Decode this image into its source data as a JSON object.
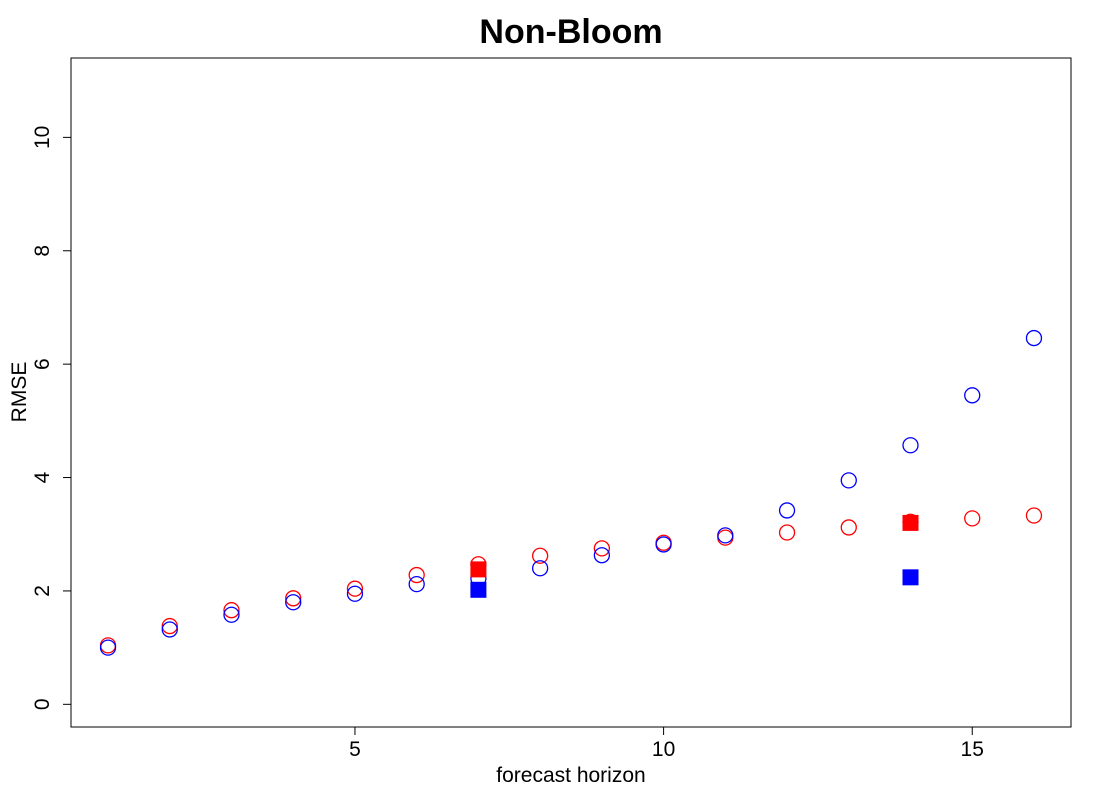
{
  "chart_data": {
    "type": "scatter",
    "title": "Non-Bloom",
    "xlabel": "forecast horizon",
    "ylabel": "RMSE",
    "xlim": [
      0.4,
      16.6
    ],
    "ylim": [
      -0.4,
      11.4
    ],
    "x_ticks": [
      5,
      10,
      15
    ],
    "y_ticks": [
      0,
      2,
      4,
      6,
      8,
      10
    ],
    "grid": false,
    "legend": "none",
    "series": [
      {
        "color": "#ff0000",
        "marker": "open-circle",
        "points": [
          {
            "x": 1,
            "y": 1.04
          },
          {
            "x": 2,
            "y": 1.38
          },
          {
            "x": 3,
            "y": 1.66
          },
          {
            "x": 4,
            "y": 1.87
          },
          {
            "x": 5,
            "y": 2.04
          },
          {
            "x": 6,
            "y": 2.28
          },
          {
            "x": 7,
            "y": 2.47
          },
          {
            "x": 8,
            "y": 2.62
          },
          {
            "x": 9,
            "y": 2.75
          },
          {
            "x": 10,
            "y": 2.85
          },
          {
            "x": 11,
            "y": 2.94
          },
          {
            "x": 12,
            "y": 3.03
          },
          {
            "x": 13,
            "y": 3.12
          },
          {
            "x": 14,
            "y": 3.22
          },
          {
            "x": 15,
            "y": 3.28
          },
          {
            "x": 16,
            "y": 3.33
          }
        ]
      },
      {
        "color": "#0000ff",
        "marker": "open-circle",
        "points": [
          {
            "x": 1,
            "y": 1.0
          },
          {
            "x": 2,
            "y": 1.32
          },
          {
            "x": 3,
            "y": 1.58
          },
          {
            "x": 4,
            "y": 1.8
          },
          {
            "x": 5,
            "y": 1.95
          },
          {
            "x": 6,
            "y": 2.12
          },
          {
            "x": 7,
            "y": 2.22
          },
          {
            "x": 8,
            "y": 2.4
          },
          {
            "x": 9,
            "y": 2.63
          },
          {
            "x": 10,
            "y": 2.82
          },
          {
            "x": 11,
            "y": 2.98
          },
          {
            "x": 12,
            "y": 3.42
          },
          {
            "x": 13,
            "y": 3.95
          },
          {
            "x": 14,
            "y": 4.57
          },
          {
            "x": 15,
            "y": 5.45
          },
          {
            "x": 16,
            "y": 6.46
          }
        ]
      },
      {
        "color": "#ff0000",
        "marker": "filled-square",
        "points": [
          {
            "x": 7,
            "y": 2.38
          },
          {
            "x": 14,
            "y": 3.2
          }
        ]
      },
      {
        "color": "#0000ff",
        "marker": "filled-square",
        "points": [
          {
            "x": 7,
            "y": 2.02
          },
          {
            "x": 14,
            "y": 2.24
          }
        ]
      }
    ]
  }
}
